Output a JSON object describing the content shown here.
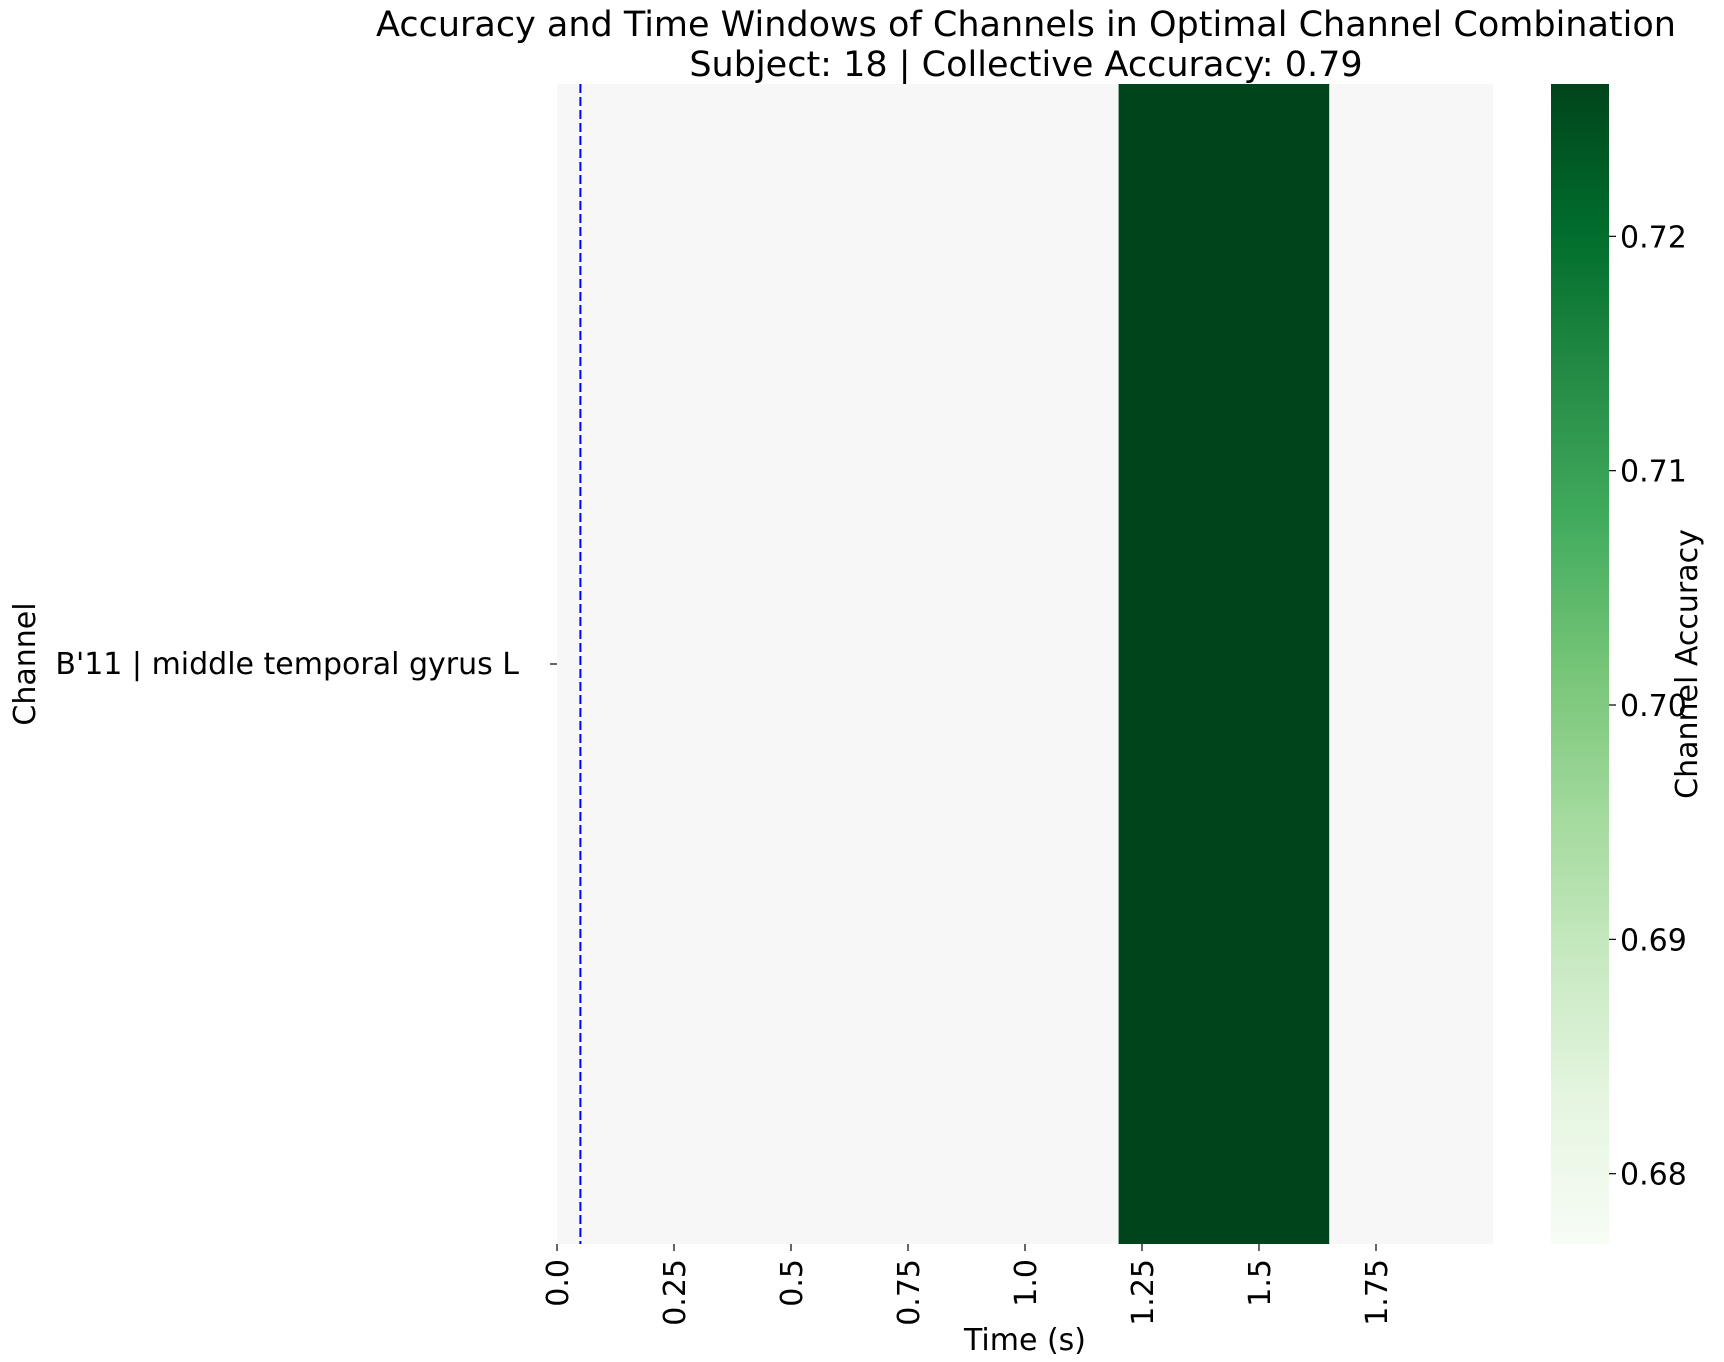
{
  "chart_data": {
    "type": "heatmap",
    "title": "Accuracy and Time Windows of Channels in Optimal Channel Combination",
    "subtitle": "Subject: 18 | Collective Accuracy: 0.79",
    "xlabel": "Time (s)",
    "ylabel": "Channel",
    "xlim": [
      0,
      2.0
    ],
    "x_ticks": [
      0.0,
      0.25,
      0.5,
      0.75,
      1.0,
      1.25,
      1.5,
      1.75
    ],
    "x_tick_labels": [
      "0.0",
      "0.25",
      "0.5",
      "0.75",
      "1.0",
      "1.25",
      "1.5",
      "1.75"
    ],
    "channels": [
      "B'11 | middle temporal gyrus L"
    ],
    "windows": [
      {
        "channel": "B'11 | middle temporal gyrus L",
        "start": 1.2,
        "end": 1.65,
        "accuracy": 0.7265
      }
    ],
    "background_value": 0.677,
    "marker_line": {
      "x": 0.05,
      "color": "#0000ff",
      "style": "dashed"
    },
    "colorbar": {
      "label": "Channel Accuracy",
      "colormap": "Greens",
      "vmin": 0.677,
      "vmax": 0.7265,
      "ticks": [
        0.68,
        0.69,
        0.7,
        0.71,
        0.72
      ],
      "tick_labels": [
        "0.68",
        "0.69",
        "0.70",
        "0.71",
        "0.72"
      ]
    },
    "colors": {
      "low": "#f7fcf5",
      "high": "#00441b",
      "background_cell": "#f7f7f7"
    }
  }
}
